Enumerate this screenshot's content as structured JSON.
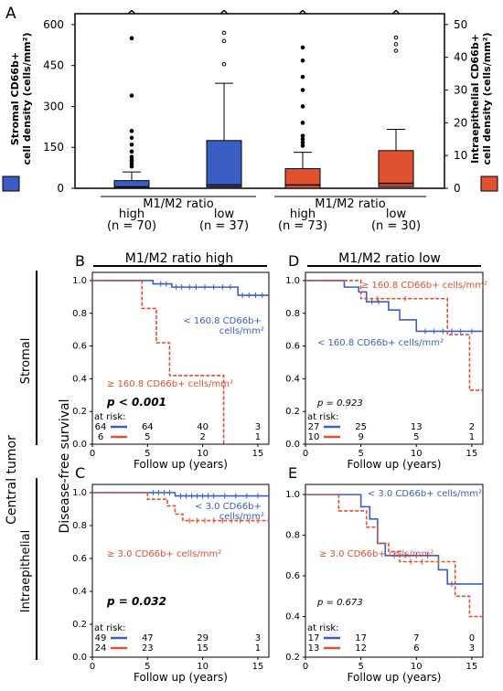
{
  "colors": {
    "blue": "#3a5ec4",
    "red": "#e0512f",
    "black": "#000000"
  },
  "panel_labels": [
    "A",
    "B",
    "C",
    "D",
    "E"
  ],
  "figure_labels": {
    "central_tumor": "Central tumor",
    "stromal": "Stromal",
    "intraepithelial": "Intraepithelial",
    "dfs": "Disease-free survival",
    "ratio_high": "M1/M2 ratio high",
    "ratio_low": "M1/M2 ratio low"
  },
  "chart_data": [
    {
      "panel": "A",
      "type": "box",
      "ylabel_left": [
        "Stromal CD66b+",
        "cell density (cells/mm²)"
      ],
      "ylabel_right": [
        "Intraepithelial CD66b+",
        "cell density (cells/mm²)"
      ],
      "ylim_left": [
        0,
        640
      ],
      "yticks_left": [
        0,
        150,
        300,
        450,
        600
      ],
      "ylim_right": [
        0,
        53.3
      ],
      "yticks_right": [
        0,
        10,
        20,
        30,
        40,
        50
      ],
      "group_labels": [
        "M1/M2 ratio",
        "M1/M2 ratio"
      ],
      "categories": [
        [
          "high",
          "(n = 70)"
        ],
        [
          "low",
          "(n = 37)"
        ],
        [
          "high",
          "(n = 73)"
        ],
        [
          "low",
          "(n = 30)"
        ]
      ],
      "overflow_marker": "^",
      "boxes": [
        {
          "axis": "left",
          "color": "blue",
          "whisker_low": 0,
          "q1": 0,
          "median": 5,
          "q3": 28,
          "whisker_high": 60,
          "outliers": [
            80,
            90,
            100,
            105,
            115,
            135,
            160,
            185,
            210,
            340,
            550
          ]
        },
        {
          "axis": "left",
          "color": "blue",
          "whisker_low": 0,
          "q1": 5,
          "median": 12,
          "q3": 175,
          "whisker_high": 385,
          "outliers": [
            455,
            540,
            570
          ]
        },
        {
          "axis": "right",
          "color": "red",
          "whisker_low": 0,
          "q1": 0,
          "median": 1,
          "q3": 6,
          "whisker_high": 11,
          "outliers": [
            13,
            14,
            15,
            16,
            20,
            25,
            30,
            34,
            39,
            43
          ]
        },
        {
          "axis": "right",
          "color": "red",
          "whisker_low": 0,
          "q1": 0.5,
          "median": 1.5,
          "q3": 11.5,
          "whisker_high": 18,
          "outliers": [
            42,
            44,
            46
          ]
        }
      ]
    },
    {
      "panel": "B",
      "type": "line",
      "xlabel": "Follow up (years)",
      "xlim": [
        0,
        16
      ],
      "xticks": [
        0,
        5,
        10,
        15
      ],
      "ylim": [
        0,
        1.05
      ],
      "yticks": [
        0,
        0.2,
        0.4,
        0.6,
        0.8,
        1.0
      ],
      "pvalue": "p < 0.001",
      "pvalue_bold": true,
      "series": [
        {
          "name": "< 160.8 CD66b+ cells/mm²",
          "color": "blue",
          "dashed": false,
          "steps": [
            [
              0,
              1.0
            ],
            [
              5.5,
              0.98
            ],
            [
              7.2,
              0.96
            ],
            [
              13.2,
              0.91
            ],
            [
              16,
              0.91
            ]
          ],
          "censor": [
            6.2,
            6.7,
            7.6,
            8.1,
            8.8,
            9.4,
            10.2,
            11,
            11.8,
            12.5,
            13.6,
            14.2,
            14.8,
            15.4
          ]
        },
        {
          "name": "≥ 160.8 CD66b+ cells/mm²",
          "color": "red",
          "dashed": true,
          "steps": [
            [
              0,
              1.0
            ],
            [
              4.5,
              0.83
            ],
            [
              5.8,
              0.62
            ],
            [
              7,
              0.42
            ],
            [
              11.9,
              0.0
            ],
            [
              12.1,
              0.0
            ]
          ],
          "censor": []
        }
      ],
      "at_risk_label": "at risk:",
      "risk_x": [
        0,
        5,
        10,
        15
      ],
      "risk_rows": [
        {
          "color": "blue",
          "values": [
            "64",
            "64",
            "40",
            "3"
          ]
        },
        {
          "color": "red",
          "values": [
            "6",
            "5",
            "2",
            "1"
          ]
        }
      ]
    },
    {
      "panel": "C",
      "type": "line",
      "xlabel": "Follow up (years)",
      "xlim": [
        0,
        16
      ],
      "xticks": [
        0,
        5,
        10,
        15
      ],
      "ylim": [
        0,
        1.05
      ],
      "yticks": [
        0,
        0.2,
        0.4,
        0.6,
        0.8,
        1.0
      ],
      "pvalue": "p = 0.032",
      "pvalue_bold": true,
      "series": [
        {
          "name": "< 3.0 CD66b+ cells/mm²",
          "color": "blue",
          "dashed": false,
          "steps": [
            [
              0,
              1.0
            ],
            [
              7.5,
              0.98
            ],
            [
              16,
              0.98
            ]
          ],
          "censor": [
            5.5,
            6,
            6.5,
            7,
            8,
            8.5,
            9,
            9.5,
            10,
            10.5,
            11,
            12,
            13,
            14,
            15
          ]
        },
        {
          "name": "≥ 3.0 CD66b+ cells/mm²",
          "color": "red",
          "dashed": true,
          "steps": [
            [
              0,
              1.0
            ],
            [
              5,
              0.96
            ],
            [
              6.8,
              0.92
            ],
            [
              7.5,
              0.87
            ],
            [
              8.2,
              0.83
            ],
            [
              16,
              0.83
            ]
          ],
          "censor": [
            8.8,
            9.5,
            10.2,
            11,
            11.8,
            12.6,
            13.4,
            14.2,
            15
          ]
        }
      ],
      "at_risk_label": "at risk:",
      "risk_x": [
        0,
        5,
        10,
        15
      ],
      "risk_rows": [
        {
          "color": "blue",
          "values": [
            "49",
            "47",
            "29",
            "3"
          ]
        },
        {
          "color": "red",
          "values": [
            "24",
            "23",
            "15",
            "1"
          ]
        }
      ]
    },
    {
      "panel": "D",
      "type": "line",
      "xlabel": "Follow up (years)",
      "xlim": [
        0,
        16
      ],
      "xticks": [
        0,
        5,
        10,
        15
      ],
      "ylim": [
        0,
        1.05
      ],
      "yticks": [
        0,
        0.2,
        0.4,
        0.6,
        0.8,
        1.0
      ],
      "pvalue": "p = 0.923",
      "pvalue_bold": false,
      "series": [
        {
          "name": "< 160.8 CD66b+ cells/mm²",
          "color": "blue",
          "dashed": false,
          "steps": [
            [
              0,
              1.0
            ],
            [
              3.5,
              0.96
            ],
            [
              4.8,
              0.93
            ],
            [
              5.5,
              0.87
            ],
            [
              7.5,
              0.82
            ],
            [
              8.5,
              0.76
            ],
            [
              10,
              0.69
            ],
            [
              16,
              0.69
            ]
          ],
          "censor": [
            6,
            6.6,
            10.8,
            11.6,
            12.4,
            13.2,
            14,
            15
          ]
        },
        {
          "name": "≥ 160.8 CD66b+ cells/mm²",
          "color": "red",
          "dashed": true,
          "steps": [
            [
              0,
              1.0
            ],
            [
              5,
              0.89
            ],
            [
              12.8,
              0.67
            ],
            [
              14.8,
              0.33
            ],
            [
              16,
              0.33
            ]
          ],
          "censor": [
            6.5,
            9
          ]
        }
      ],
      "at_risk_label": "at risk:",
      "risk_x": [
        0,
        5,
        10,
        15
      ],
      "risk_rows": [
        {
          "color": "blue",
          "values": [
            "27",
            "25",
            "13",
            "2"
          ]
        },
        {
          "color": "red",
          "values": [
            "10",
            "9",
            "5",
            "1"
          ]
        }
      ]
    },
    {
      "panel": "E",
      "type": "line",
      "xlabel": "Follow up (years)",
      "xlim": [
        0,
        16
      ],
      "xticks": [
        0,
        5,
        10,
        15
      ],
      "ylim": [
        0.2,
        1.05
      ],
      "yticks": [
        0.2,
        0.4,
        0.6,
        0.8,
        1.0
      ],
      "pvalue": "p = 0.673",
      "pvalue_bold": false,
      "series": [
        {
          "name": "< 3.0 CD66b+ cells/mm²",
          "color": "blue",
          "dashed": false,
          "steps": [
            [
              0,
              1.0
            ],
            [
              5,
              0.94
            ],
            [
              5.8,
              0.88
            ],
            [
              6.5,
              0.76
            ],
            [
              7.2,
              0.7
            ],
            [
              12,
              0.63
            ],
            [
              12.8,
              0.56
            ],
            [
              16,
              0.56
            ]
          ],
          "censor": [
            8,
            9,
            10,
            11,
            13.2
          ]
        },
        {
          "name": "≥ 3.0 CD66b+ cells/mm²",
          "color": "red",
          "dashed": true,
          "steps": [
            [
              0,
              1.0
            ],
            [
              3,
              0.92
            ],
            [
              5.5,
              0.84
            ],
            [
              6.5,
              0.76
            ],
            [
              7.5,
              0.72
            ],
            [
              8.5,
              0.67
            ],
            [
              13.5,
              0.5
            ],
            [
              14.8,
              0.4
            ],
            [
              16,
              0.4
            ]
          ],
          "censor": [
            9.5,
            10.5,
            12
          ]
        }
      ],
      "at_risk_label": "at risk:",
      "risk_x": [
        0,
        5,
        10,
        15
      ],
      "risk_rows": [
        {
          "color": "blue",
          "values": [
            "17",
            "17",
            "7",
            "0"
          ]
        },
        {
          "color": "red",
          "values": [
            "13",
            "12",
            "6",
            "3"
          ]
        }
      ]
    }
  ]
}
